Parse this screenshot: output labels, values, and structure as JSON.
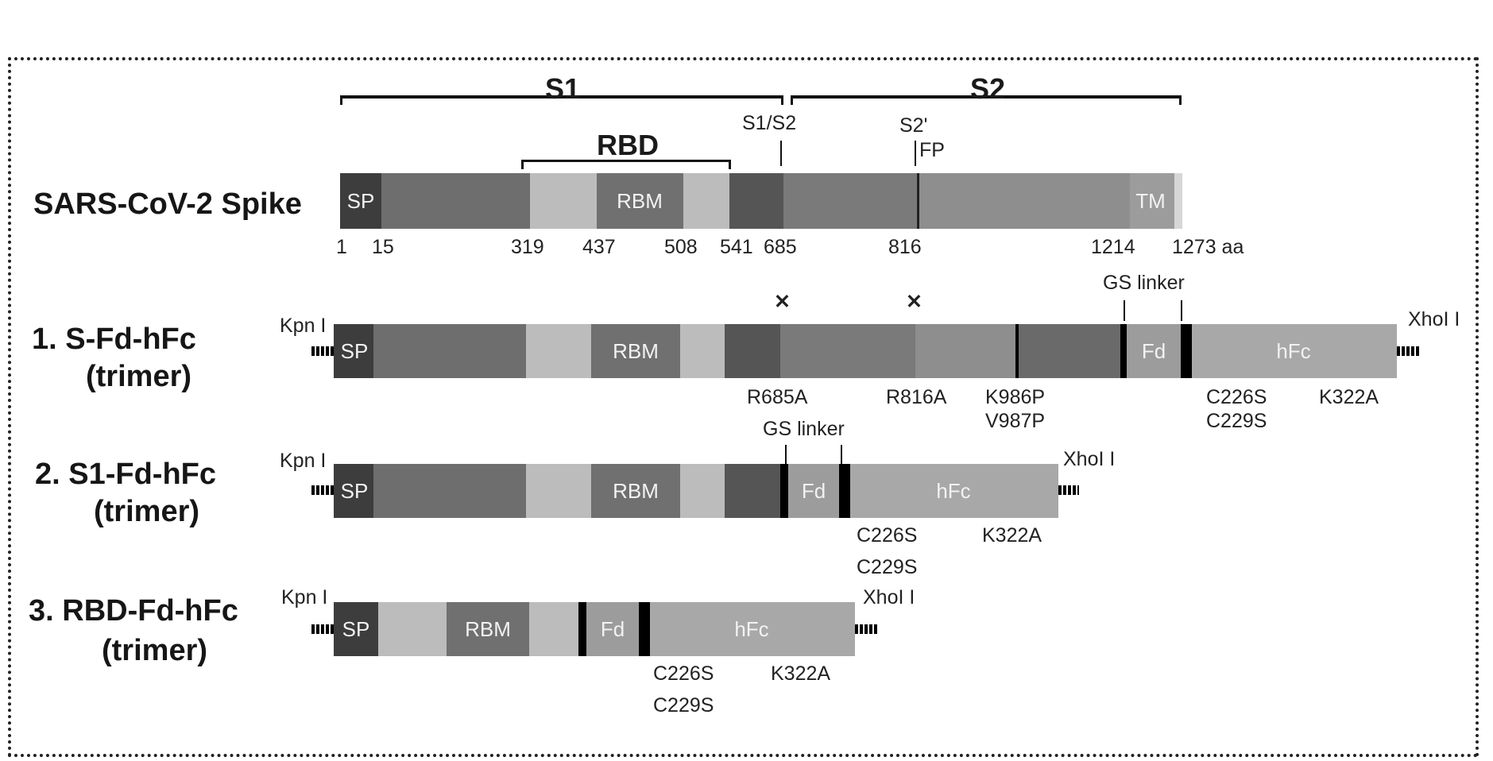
{
  "colors": {
    "sp": "#3d3d3d",
    "s1": "#6e6e6e",
    "rbd": "#bcbcbc",
    "rbm": "#707070",
    "s2_dark": "#4f4f4f",
    "s2": "#8a8a8a",
    "tm": "#9a9a9a",
    "fd": "#9c9c9c",
    "hfc": "#a8a8a8",
    "linker": "#000000",
    "border": "#222222"
  },
  "domains": {
    "s1": "S1",
    "s2": "S2",
    "rbd": "RBD",
    "s1s2_site": "S1/S2",
    "s2prime_site": "S2'",
    "fp": "FP",
    "sp": "SP",
    "rbm": "RBM",
    "tm": "TM",
    "fd": "Fd",
    "hfc": "hFc"
  },
  "spike": {
    "title": "SARS-CoV-2 Spike",
    "positions": [
      "1",
      "15",
      "319",
      "437",
      "508",
      "541",
      "685",
      "816",
      "1214",
      "1273 aa"
    ]
  },
  "construct1": {
    "title_line1": "1.  S-Fd-hFc",
    "title_line2": "(trimer)",
    "mutations": {
      "r685a": "R685A",
      "r816a": "R816A",
      "k986p": "K986P",
      "v987p": "V987P",
      "c226s": "C226S",
      "c229s": "C229S",
      "k322a": "K322A"
    }
  },
  "construct2": {
    "title_line1": "2.  S1-Fd-hFc",
    "title_line2": "(trimer)",
    "mutations": {
      "c226s": "C226S",
      "c229s": "C229S",
      "k322a": "K322A"
    }
  },
  "construct3": {
    "title_line1": "3.  RBD-Fd-hFc",
    "title_line2": "(trimer)",
    "mutations": {
      "c226s": "C226S",
      "c229s": "C229S",
      "k322a": "K322A"
    }
  },
  "sites": {
    "kpn1": "Kpn I",
    "xho1": "XhoI I",
    "gs_linker": "GS linker"
  }
}
